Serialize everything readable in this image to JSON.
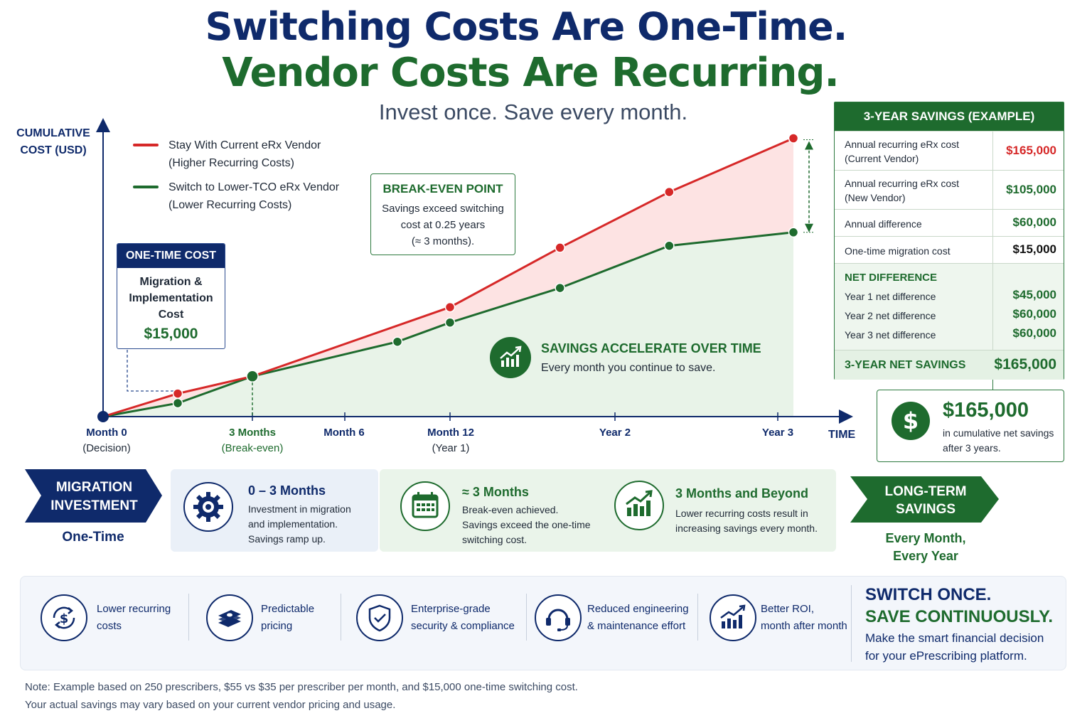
{
  "header": {
    "title_line1": "Switching Costs Are One-Time.",
    "title_line2": "Vendor Costs Are Recurring.",
    "subtitle": "Invest once. Save every month."
  },
  "colors": {
    "navy": "#0f2a6b",
    "green": "#1e6b2e",
    "red": "#d62828",
    "red_fill": "#fde3e3",
    "green_fill": "#e8f3e8"
  },
  "chart_data": {
    "type": "line",
    "ylabel_line1": "CUMULATIVE",
    "ylabel_line2": "COST (USD)",
    "xlabel": "TIME",
    "x_ticks": [
      {
        "label": "Month 0",
        "sub": "(Decision)",
        "month": 0
      },
      {
        "label": "3 Months",
        "sub": "(Break-even)",
        "month": 3
      },
      {
        "label": "Month 6",
        "sub": "",
        "month": 6
      },
      {
        "label": "Month 12",
        "sub": "(Year 1)",
        "month": 12
      },
      {
        "label": "Year 2",
        "sub": "",
        "month": 24
      },
      {
        "label": "Year 3",
        "sub": "",
        "month": 36
      }
    ],
    "series": [
      {
        "name": "Stay With Current eRx Vendor",
        "name_sub": "(Higher Recurring Costs)",
        "color": "#d62828",
        "points": [
          [
            0,
            0
          ],
          [
            1.5,
            1.2
          ],
          [
            3,
            2.1
          ],
          [
            12,
            5.7
          ],
          [
            20,
            8.8
          ],
          [
            28,
            11.7
          ],
          [
            37,
            14.5
          ]
        ]
      },
      {
        "name": "Switch to Lower-TCO eRx Vendor",
        "name_sub": "(Lower Recurring Costs)",
        "color": "#1e6b2e",
        "points": [
          [
            0,
            0
          ],
          [
            1.5,
            0.7
          ],
          [
            3,
            2.1
          ],
          [
            9,
            3.9
          ],
          [
            12,
            4.9
          ],
          [
            20,
            6.7
          ],
          [
            28,
            8.9
          ],
          [
            37,
            9.6
          ]
        ]
      }
    ],
    "grid": false,
    "legend_position": "top-left"
  },
  "one_time_cost": {
    "title": "ONE-TIME COST",
    "line1": "Migration &",
    "line2": "Implementation",
    "line3": "Cost",
    "value": "$15,000"
  },
  "break_even": {
    "title": "BREAK-EVEN POINT",
    "line1": "Savings exceed switching",
    "line2": "cost at 0.25 years",
    "line3": "(≈ 3 months)."
  },
  "savings_accel": {
    "title": "SAVINGS ACCELERATE OVER TIME",
    "text": "Every month you continue to save.",
    "icon": "growth-chart-icon"
  },
  "table": {
    "title": "3-YEAR SAVINGS (EXAMPLE)",
    "rows": [
      {
        "label1": "Annual recurring eRx cost",
        "label2": "(Current Vendor)",
        "value": "$165,000"
      },
      {
        "label1": "Annual recurring eRx cost",
        "label2": "(New Vendor)",
        "value": "$105,000"
      },
      {
        "label1": "Annual difference",
        "label2": "",
        "value": "$60,000"
      },
      {
        "label1": "One-time migration cost",
        "label2": "",
        "value": "$15,000"
      }
    ],
    "net_title": "NET DIFFERENCE",
    "net_rows": [
      {
        "label": "Year 1 net difference",
        "value": "$45,000"
      },
      {
        "label": "Year 2 net difference",
        "value": "$60,000"
      },
      {
        "label": "Year 3 net difference",
        "value": "$60,000"
      }
    ],
    "total_label": "3-YEAR NET SAVINGS",
    "total_value": "$165,000"
  },
  "callout": {
    "value": "$165,000",
    "line1": "in cumulative net savings",
    "line2": "after 3 years.",
    "icon": "dollar-icon"
  },
  "timeline": {
    "start_line1": "MIGRATION",
    "start_line2": "INVESTMENT",
    "start_caption": "One-Time",
    "stages": [
      {
        "title": "0 – 3 Months",
        "line1": "Investment in migration",
        "line2": "and implementation.",
        "line3": "Savings ramp up.",
        "icon": "gear-icon"
      },
      {
        "title": "≈ 3 Months",
        "line1": "Break-even achieved.",
        "line2": "Savings exceed the one-time",
        "line3": "switching cost.",
        "icon": "calendar-icon"
      },
      {
        "title": "3 Months and Beyond",
        "line1": "Lower recurring costs result in",
        "line2": "increasing savings every month.",
        "line3": "",
        "icon": "growth-chart-icon"
      }
    ],
    "end_line1": "LONG-TERM",
    "end_line2": "SAVINGS",
    "end_caption1": "Every Month,",
    "end_caption2": "Every Year"
  },
  "benefits": {
    "items": [
      {
        "line1": "Lower recurring",
        "line2": "costs",
        "icon": "dollar-cycle-icon"
      },
      {
        "line1": "Predictable",
        "line2": "pricing",
        "icon": "money-stack-icon"
      },
      {
        "line1": "Enterprise-grade",
        "line2": "security & compliance",
        "icon": "shield-check-icon"
      },
      {
        "line1": "Reduced engineering",
        "line2": "& maintenance effort",
        "icon": "headset-icon"
      },
      {
        "line1": "Better ROI,",
        "line2": "month after month",
        "icon": "growth-chart-icon"
      }
    ],
    "cta_line1": "SWITCH ONCE.",
    "cta_line2": "SAVE CONTINUOUSLY.",
    "cta_text1": "Make the smart financial decision",
    "cta_text2": "for your ePrescribing platform."
  },
  "note": {
    "line1": "Note: Example based on 250 prescribers, $55 vs $35 per prescriber per month, and $15,000 one-time switching cost.",
    "line2": "Your actual savings may vary based on your current vendor pricing and usage."
  }
}
